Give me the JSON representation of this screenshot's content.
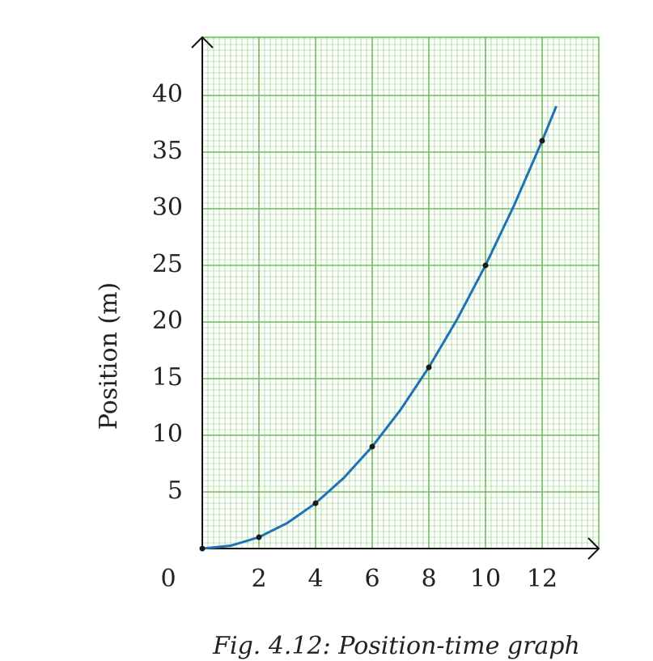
{
  "chart_data": {
    "type": "line",
    "caption": "Fig. 4.12: Position-time graph",
    "y_label": "Position (m)",
    "xlim": [
      0,
      14
    ],
    "ylim": [
      0,
      45
    ],
    "xticks": [
      0,
      2,
      4,
      6,
      8,
      10,
      12
    ],
    "yticks": [
      5,
      10,
      15,
      20,
      25,
      30,
      35,
      40
    ],
    "grid": true,
    "grid_color": "#6cbf5a",
    "series": [
      {
        "x": [
          0,
          1,
          2,
          3,
          4,
          5,
          6,
          7,
          8,
          9,
          10,
          11,
          12,
          12.5
        ],
        "values": [
          0,
          0.25,
          1,
          2.25,
          4,
          6.25,
          9,
          12.25,
          16,
          20.25,
          25,
          30.25,
          36,
          39.06
        ],
        "color": "#1f72b4"
      },
      {
        "x": [
          0,
          2,
          4,
          6,
          8,
          10,
          12
        ],
        "values": [
          0,
          1,
          4,
          9,
          16,
          25,
          36
        ],
        "color": "#1a1a1a"
      }
    ]
  }
}
